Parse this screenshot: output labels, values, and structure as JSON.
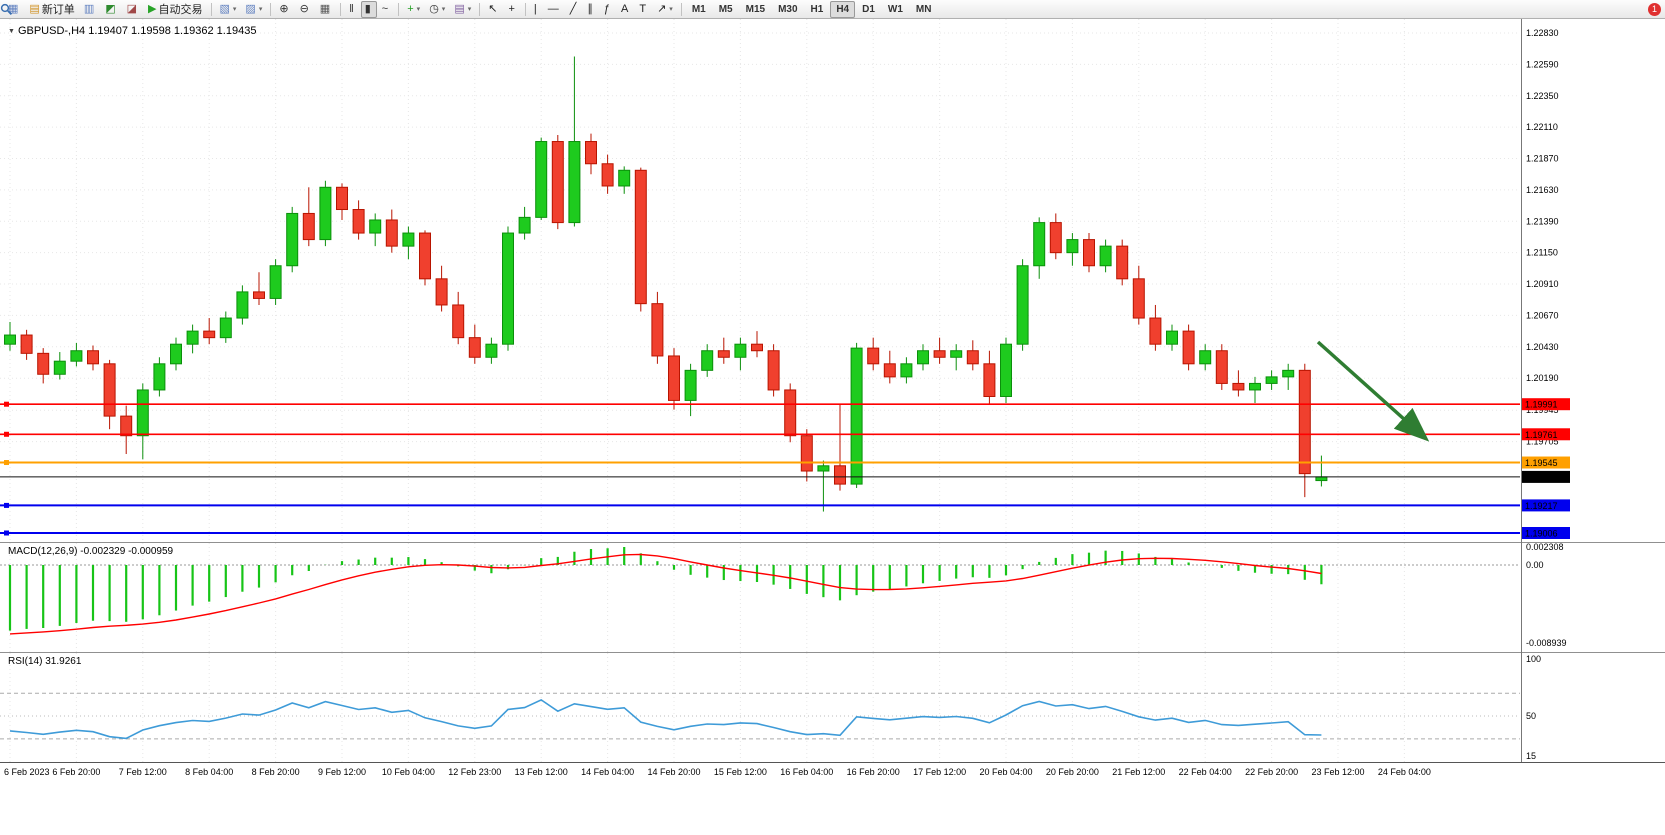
{
  "toolbar": {
    "notification_count": "1",
    "items": [
      {
        "type": "icon",
        "name": "chart-window-icon",
        "glyph": "▦",
        "color": "#6080c0"
      },
      {
        "type": "button",
        "name": "new-order-button",
        "label": "新订单",
        "glyph": "▤",
        "color": "#d09020"
      },
      {
        "type": "icon",
        "name": "charts-grid-icon",
        "glyph": "▥",
        "color": "#6080c0"
      },
      {
        "type": "icon",
        "name": "market-watch-icon",
        "glyph": "◩",
        "color": "#2e8b2e"
      },
      {
        "type": "icon",
        "name": "navigator-icon",
        "glyph": "◪",
        "color": "#a04848"
      },
      {
        "type": "button",
        "name": "autotrading-button",
        "label": "自动交易",
        "glyph": "▶",
        "color": "#28a428"
      },
      {
        "type": "sep"
      },
      {
        "type": "icon",
        "name": "new-chart-icon",
        "glyph": "▧",
        "color": "#6080c0",
        "caret": true
      },
      {
        "type": "icon",
        "name": "profiles-icon",
        "glyph": "▨",
        "color": "#6080c0",
        "caret": true
      },
      {
        "type": "sep"
      },
      {
        "type": "icon",
        "name": "zoom-in-icon",
        "glyph": "⊕",
        "color": "#333333"
      },
      {
        "type": "icon",
        "name": "zoom-out-icon",
        "glyph": "⊖",
        "color": "#333333"
      },
      {
        "type": "icon",
        "name": "tile-windows-icon",
        "glyph": "▦",
        "color": "#555555"
      },
      {
        "type": "sep"
      },
      {
        "type": "icon",
        "name": "bar-chart-mode-icon",
        "glyph": "‖",
        "color": "#333333"
      },
      {
        "type": "icon",
        "name": "candlestick-mode-icon",
        "glyph": "▮",
        "color": "#333333",
        "active": true
      },
      {
        "type": "icon",
        "name": "line-chart-mode-icon",
        "glyph": "~",
        "color": "#333333"
      },
      {
        "type": "sep"
      },
      {
        "type": "icon",
        "name": "indicators-icon",
        "glyph": "+",
        "color": "#22a022",
        "caret": true
      },
      {
        "type": "icon",
        "name": "periods-icon",
        "glyph": "◷",
        "color": "#333333",
        "caret": true
      },
      {
        "type": "icon",
        "name": "templates-icon",
        "glyph": "▤",
        "color": "#8060a0",
        "caret": true
      },
      {
        "type": "sep"
      },
      {
        "type": "icon",
        "name": "cursor-icon",
        "glyph": "↖",
        "color": "#222222"
      },
      {
        "type": "icon",
        "name": "crosshair-icon",
        "glyph": "+",
        "color": "#222222"
      },
      {
        "type": "sep"
      },
      {
        "type": "icon",
        "name": "vertical-line-icon",
        "glyph": "|",
        "color": "#222222"
      },
      {
        "type": "icon",
        "name": "horizontal-line-icon",
        "glyph": "—",
        "color": "#222222"
      },
      {
        "type": "icon",
        "name": "trendline-icon",
        "glyph": "╱",
        "color": "#222222"
      },
      {
        "type": "icon",
        "name": "equidistant-channel-icon",
        "glyph": "∥",
        "color": "#222222"
      },
      {
        "type": "icon",
        "name": "fibonacci-icon",
        "glyph": "ƒ",
        "color": "#222222"
      },
      {
        "type": "icon",
        "name": "text-icon",
        "glyph": "A",
        "color": "#222222"
      },
      {
        "type": "icon",
        "name": "text-label-icon",
        "glyph": "T",
        "color": "#222222"
      },
      {
        "type": "icon",
        "name": "arrows-icon",
        "glyph": "↗",
        "color": "#222222",
        "caret": true
      },
      {
        "type": "sep"
      },
      {
        "type": "tf",
        "name": "timeframe-m1",
        "label": "M1"
      },
      {
        "type": "tf",
        "name": "timeframe-m5",
        "label": "M5"
      },
      {
        "type": "tf",
        "name": "timeframe-m15",
        "label": "M15"
      },
      {
        "type": "tf",
        "name": "timeframe-m30",
        "label": "M30"
      },
      {
        "type": "tf",
        "name": "timeframe-h1",
        "label": "H1"
      },
      {
        "type": "tf",
        "name": "timeframe-h4",
        "label": "H4",
        "active": true
      },
      {
        "type": "tf",
        "name": "timeframe-d1",
        "label": "D1"
      },
      {
        "type": "tf",
        "name": "timeframe-w1",
        "label": "W1"
      },
      {
        "type": "tf",
        "name": "timeframe-mn",
        "label": "MN"
      },
      {
        "type": "spacer"
      },
      {
        "type": "search"
      },
      {
        "type": "badge"
      }
    ]
  },
  "chart": {
    "title_line": "GBPUSD-,H4  1.19407 1.19598 1.19362 1.19435"
  },
  "chart_data": {
    "type": "candlestick",
    "symbol": "GBPUSD-",
    "period": "H4",
    "current_bar": {
      "open": 1.19407,
      "high": 1.19598,
      "low": 1.19362,
      "close": 1.19435
    },
    "bid_price": 1.19435,
    "bid_label": "1.19435",
    "up_color": "#1ecb1e",
    "up_border": "#0b8f0b",
    "down_color": "#f0402e",
    "down_border": "#b81400",
    "y_axis_labels": [
      "1.22830",
      "1.22590",
      "1.22350",
      "1.22110",
      "1.21870",
      "1.21630",
      "1.21390",
      "1.21150",
      "1.20910",
      "1.20670",
      "1.20430",
      "1.20190",
      "1.19945",
      "1.19705"
    ],
    "x_axis_labels": [
      "6 Feb 2023",
      "6 Feb 20:00",
      "7 Feb 12:00",
      "8 Feb 04:00",
      "8 Feb 20:00",
      "9 Feb 12:00",
      "10 Feb 04:00",
      "12 Feb 23:00",
      "13 Feb 12:00",
      "14 Feb 04:00",
      "14 Feb 20:00",
      "15 Feb 12:00",
      "16 Feb 04:00",
      "16 Feb 20:00",
      "17 Feb 12:00",
      "20 Feb 04:00",
      "20 Feb 20:00",
      "21 Feb 12:00",
      "22 Feb 04:00",
      "22 Feb 20:00",
      "23 Feb 12:00",
      "24 Feb 04:00"
    ],
    "levels": [
      {
        "name": "resistance-line-1",
        "price": 1.19991,
        "label": "1.19991",
        "color": "#ff0000",
        "width": 1.6
      },
      {
        "name": "resistance-line-2",
        "price": 1.19761,
        "label": "1.19761",
        "color": "#ff0000",
        "width": 1.6
      },
      {
        "name": "support-line-orange",
        "price": 1.19545,
        "label": "1.19545",
        "color": "#ffa000",
        "width": 2
      },
      {
        "name": "support-line-blue-1",
        "price": 1.19217,
        "label": "1.19217",
        "color": "#0000ee",
        "width": 2
      },
      {
        "name": "support-line-blue-2",
        "price": 1.19006,
        "label": "1.19006",
        "color": "#0000ee",
        "width": 2
      }
    ],
    "annotations": [
      {
        "type": "arrow",
        "name": "trend-arrow",
        "color": "#2f7d32",
        "from": [
          1318,
          342
        ],
        "to": [
          1424,
          437
        ]
      }
    ],
    "candles": [
      [
        1.2045,
        1.2062,
        1.204,
        1.2052
      ],
      [
        1.2052,
        1.2056,
        1.2033,
        1.2038
      ],
      [
        1.2038,
        1.2042,
        1.2015,
        1.2022
      ],
      [
        1.2022,
        1.2039,
        1.2018,
        1.2032
      ],
      [
        1.2032,
        1.2046,
        1.2028,
        1.204
      ],
      [
        1.204,
        1.2044,
        1.2025,
        1.203
      ],
      [
        1.203,
        1.2033,
        1.198,
        1.199
      ],
      [
        1.199,
        1.1998,
        1.1961,
        1.1975
      ],
      [
        1.1975,
        1.2015,
        1.1957,
        1.201
      ],
      [
        1.201,
        1.2035,
        1.2005,
        1.203
      ],
      [
        1.203,
        1.205,
        1.2025,
        1.2045
      ],
      [
        1.2045,
        1.206,
        1.2038,
        1.2055
      ],
      [
        1.2055,
        1.2065,
        1.2045,
        1.205
      ],
      [
        1.205,
        1.207,
        1.2046,
        1.2065
      ],
      [
        1.2065,
        1.209,
        1.206,
        1.2085
      ],
      [
        1.2085,
        1.21,
        1.2075,
        1.208
      ],
      [
        1.208,
        1.211,
        1.2075,
        1.2105
      ],
      [
        1.2105,
        1.215,
        1.21,
        1.2145
      ],
      [
        1.2145,
        1.2165,
        1.212,
        1.2125
      ],
      [
        1.2125,
        1.217,
        1.212,
        1.2165
      ],
      [
        1.2165,
        1.2168,
        1.214,
        1.2148
      ],
      [
        1.2148,
        1.2155,
        1.2125,
        1.213
      ],
      [
        1.213,
        1.2145,
        1.212,
        1.214
      ],
      [
        1.214,
        1.2148,
        1.2115,
        1.212
      ],
      [
        1.212,
        1.2135,
        1.211,
        1.213
      ],
      [
        1.213,
        1.2132,
        1.209,
        1.2095
      ],
      [
        1.2095,
        1.2105,
        1.207,
        1.2075
      ],
      [
        1.2075,
        1.2085,
        1.2045,
        1.205
      ],
      [
        1.205,
        1.206,
        1.203,
        1.2035
      ],
      [
        1.2035,
        1.205,
        1.203,
        1.2045
      ],
      [
        1.2045,
        1.2135,
        1.204,
        1.213
      ],
      [
        1.213,
        1.215,
        1.2125,
        1.2142
      ],
      [
        1.2142,
        1.2203,
        1.214,
        1.22
      ],
      [
        1.22,
        1.2205,
        1.2133,
        1.2138
      ],
      [
        1.2138,
        1.2265,
        1.2135,
        1.22
      ],
      [
        1.22,
        1.2206,
        1.2175,
        1.2183
      ],
      [
        1.2183,
        1.219,
        1.216,
        1.2166
      ],
      [
        1.2166,
        1.2181,
        1.216,
        1.2178
      ],
      [
        1.2178,
        1.218,
        1.207,
        1.2076
      ],
      [
        1.2076,
        1.2085,
        1.203,
        1.2036
      ],
      [
        1.2036,
        1.2042,
        1.1995,
        1.2002
      ],
      [
        1.2002,
        1.203,
        1.199,
        1.2025
      ],
      [
        1.2025,
        1.2045,
        1.202,
        1.204
      ],
      [
        1.204,
        1.205,
        1.203,
        1.2035
      ],
      [
        1.2035,
        1.205,
        1.2025,
        1.2045
      ],
      [
        1.2045,
        1.2055,
        1.2035,
        1.204
      ],
      [
        1.204,
        1.2045,
        1.2005,
        1.201
      ],
      [
        1.201,
        1.2015,
        1.197,
        1.1975
      ],
      [
        1.1975,
        1.198,
        1.194,
        1.1948
      ],
      [
        1.1948,
        1.1956,
        1.1917,
        1.1952
      ],
      [
        1.1952,
        1.1999,
        1.1933,
        1.1938
      ],
      [
        1.1938,
        1.2046,
        1.1935,
        1.2042
      ],
      [
        1.2042,
        1.205,
        1.2025,
        1.203
      ],
      [
        1.203,
        1.204,
        1.2015,
        1.202
      ],
      [
        1.202,
        1.2035,
        1.2015,
        1.203
      ],
      [
        1.203,
        1.2045,
        1.2025,
        1.204
      ],
      [
        1.204,
        1.205,
        1.203,
        1.2035
      ],
      [
        1.2035,
        1.2045,
        1.2025,
        1.204
      ],
      [
        1.204,
        1.2048,
        1.2025,
        1.203
      ],
      [
        1.203,
        1.204,
        1.1999,
        1.2005
      ],
      [
        1.2005,
        1.205,
        1.2,
        1.2045
      ],
      [
        1.2045,
        1.211,
        1.204,
        1.2105
      ],
      [
        1.2105,
        1.2142,
        1.2095,
        1.2138
      ],
      [
        1.2138,
        1.2145,
        1.211,
        1.2115
      ],
      [
        1.2115,
        1.213,
        1.2105,
        1.2125
      ],
      [
        1.2125,
        1.213,
        1.21,
        1.2105
      ],
      [
        1.2105,
        1.2125,
        1.21,
        1.212
      ],
      [
        1.212,
        1.2125,
        1.209,
        1.2095
      ],
      [
        1.2095,
        1.2105,
        1.206,
        1.2065
      ],
      [
        1.2065,
        1.2075,
        1.204,
        1.2045
      ],
      [
        1.2045,
        1.206,
        1.204,
        1.2055
      ],
      [
        1.2055,
        1.206,
        1.2025,
        1.203
      ],
      [
        1.203,
        1.2045,
        1.2025,
        1.204
      ],
      [
        1.204,
        1.2045,
        1.201,
        1.2015
      ],
      [
        1.2015,
        1.2025,
        1.2005,
        1.201
      ],
      [
        1.201,
        1.202,
        1.2,
        1.2015
      ],
      [
        1.2015,
        1.2025,
        1.201,
        1.202
      ],
      [
        1.202,
        1.203,
        1.201,
        1.2025
      ],
      [
        1.2025,
        1.203,
        1.1928,
        1.1946
      ],
      [
        1.19407,
        1.19598,
        1.19362,
        1.19435
      ]
    ],
    "indicators": {
      "macd": {
        "label": "MACD(12,26,9) -0.002329 -0.000959",
        "params": [
          12,
          26,
          9
        ],
        "value": -0.002329,
        "signal": -0.000959,
        "scale_max_label": "0.002308",
        "scale_zero_label": "0.00",
        "scale_min_label": "-0.008939",
        "scale_max": 0.002308,
        "scale_min": -0.008939,
        "histogram_color": "#17c417",
        "signal_color": "#ff0000"
      },
      "rsi": {
        "label": "RSI(14) 31.9261",
        "period": 14,
        "value": 31.9261,
        "levels": [
          70,
          30
        ],
        "scale_labels": [
          "100",
          "50",
          "15"
        ],
        "line_color": "#3e9bd8"
      }
    }
  }
}
